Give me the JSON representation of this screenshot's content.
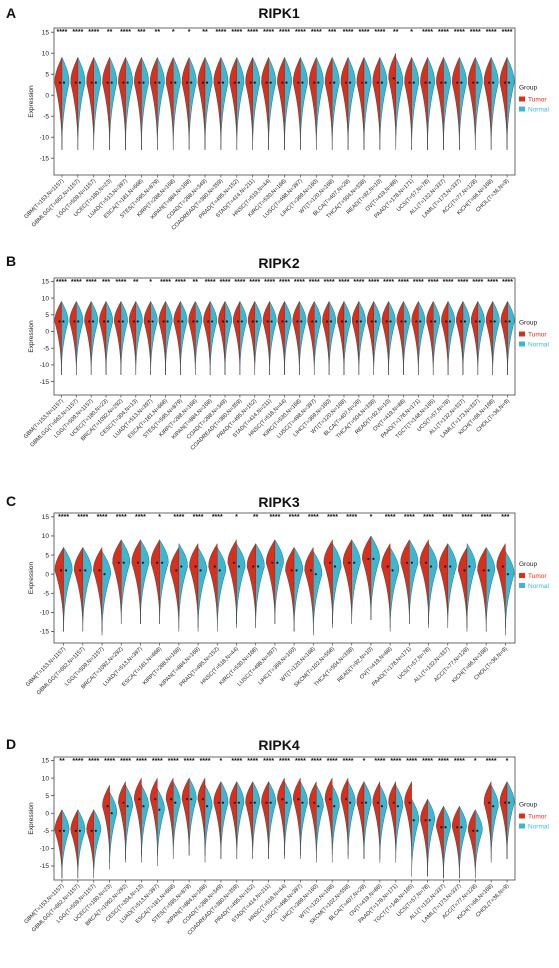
{
  "colors": {
    "tumor": "#d8301c",
    "normal": "#3fb6cf",
    "axis": "#333333"
  },
  "legend": {
    "title": "Group",
    "tumor": "Tumor",
    "normal": "Normal"
  },
  "chart_data": [
    {
      "type": "split-violin",
      "letter": "A",
      "title": "RIPK1",
      "ylabel": "Expression",
      "ylim": [
        -19,
        16
      ],
      "yticks": [
        15,
        10,
        5,
        0,
        -5,
        -10,
        -15
      ],
      "categories": [
        "GBM(T=153,N=1157)",
        "GBMLGG(T=662,N=1157)",
        "LGG(T=509,N=1157)",
        "UCEC(T=180,N=23)",
        "LUAD(T=513,N=397)",
        "ESCA(T=181,N=668)",
        "STES(T=595,N=879)",
        "KIRP(T=288,N=168)",
        "KIPAN(T=884,N=168)",
        "COAD(T=288,N=349)",
        "COADREAD(T=380,N=359)",
        "PRAD(T=495,N=152)",
        "STAD(T=414,N=211)",
        "HNSC(T=519,N=44)",
        "KIRC(T=530,N=168)",
        "LUSC(T=498,N=397)",
        "LIHC(T=369,N=160)",
        "WT(T=120,N=168)",
        "BLCA(T=407,N=28)",
        "THCA(T=504,N=338)",
        "READ(T=92,N=10)",
        "OV(T=419,N=88)",
        "PAAD(T=178,N=171)",
        "UCS(T=57,N=78)",
        "ALL(T=132,N=337)",
        "LAML(T=173,N=337)",
        "ACC(T=77,N=128)",
        "KICH(T=66,N=168)",
        "CHOL(T=36,N=9)"
      ],
      "significance": [
        "****",
        "****",
        "****",
        "**",
        "****",
        "***",
        "**",
        "*",
        "*",
        "**",
        "****",
        "****",
        "****",
        "****",
        "****",
        "****",
        "****",
        "***",
        "****",
        "****",
        "****",
        "**",
        "*",
        "****",
        "****",
        "****",
        "****",
        "****",
        "****"
      ],
      "tumor_median": [
        3,
        3,
        3,
        3,
        3,
        3,
        3,
        3,
        3,
        3,
        3,
        3,
        3,
        3,
        3,
        3,
        3,
        3,
        3,
        3,
        3,
        4,
        3,
        3,
        3,
        3,
        3,
        3,
        3
      ],
      "normal_median": [
        3,
        3,
        3,
        3,
        3,
        3,
        3,
        3,
        3,
        3,
        3,
        3,
        3,
        3,
        3,
        3,
        3,
        3,
        3,
        3,
        3,
        3,
        3,
        3,
        3,
        3,
        3,
        3,
        3
      ]
    },
    {
      "type": "split-violin",
      "letter": "B",
      "title": "RIPK2",
      "ylabel": "Expression",
      "ylim": [
        -19,
        16
      ],
      "yticks": [
        15,
        10,
        5,
        0,
        -5,
        -10,
        -15
      ],
      "categories": [
        "GBM(T=153,N=1157)",
        "GBMLGG(T=662,N=1157)",
        "LGG(T=509,N=1157)",
        "UCEC(T=180,N=23)",
        "BRCA(T=1092,N=292)",
        "CESC(T=304,N=13)",
        "LUAD(T=513,N=397)",
        "ESCA(T=181,N=668)",
        "STES(T=595,N=879)",
        "KIRP(T=288,N=168)",
        "KIPAN(T=884,N=168)",
        "COAD(T=288,N=349)",
        "COADREAD(T=380,N=359)",
        "PRAD(T=495,N=152)",
        "STAD(T=414,N=211)",
        "HNSC(T=518,N=44)",
        "KIRC(T=530,N=168)",
        "LUSC(T=498,N=397)",
        "LIHC(T=369,N=160)",
        "WT(T=120,N=168)",
        "BLCA(T=407,N=28)",
        "THCA(T=504,N=338)",
        "READ(T=92,N=10)",
        "OV(T=419,N=88)",
        "PAAD(T=178,N=171)",
        "TGCT(T=148,N=165)",
        "UCS(T=57,N=78)",
        "ALL(T=132,N=337)",
        "LAML(T=173,N=337)",
        "KICH(T=66,N=168)",
        "CHOL(T=36,N=9)"
      ],
      "significance": [
        "****",
        "****",
        "****",
        "***",
        "****",
        "**",
        "*",
        "****",
        "****",
        "**",
        "****",
        "****",
        "****",
        "****",
        "****",
        "****",
        "****",
        "****",
        "****",
        "****",
        "****",
        "****",
        "****",
        "****",
        "****",
        "****",
        "****",
        "****",
        "****",
        "****",
        "****"
      ],
      "tumor_median": [
        3,
        3,
        3,
        3,
        3,
        3,
        3,
        3,
        3,
        3,
        3,
        3,
        3,
        3,
        3,
        3,
        3,
        3,
        3,
        3,
        3,
        3,
        3,
        3,
        3,
        3,
        3,
        3,
        3,
        3,
        3
      ],
      "normal_median": [
        3,
        3,
        3,
        3,
        3,
        3,
        3,
        3,
        3,
        3,
        3,
        3,
        3,
        3,
        3,
        3,
        3,
        3,
        3,
        3,
        3,
        3,
        3,
        3,
        3,
        3,
        3,
        3,
        3,
        3,
        3
      ]
    },
    {
      "type": "split-violin",
      "letter": "C",
      "title": "RIPK3",
      "ylabel": "Expression",
      "ylim": [
        -18,
        16
      ],
      "yticks": [
        15,
        10,
        5,
        0,
        -5,
        -10,
        -15
      ],
      "categories": [
        "GBM(T=153,N=1157)",
        "GBMLGG(T=662,N=1157)",
        "LGG(T=509,N=1157)",
        "BRCA(T=1092,N=292)",
        "LUAD(T=513,N=397)",
        "ESCA(T=181,N=668)",
        "KIRP(T=288,N=168)",
        "KIPAN(T=884,N=168)",
        "PRAD(T=495,N=152)",
        "HNSC(T=518,N=44)",
        "KIRC(T=530,N=168)",
        "LUSC(T=498,N=397)",
        "LIHC(T=369,N=160)",
        "WT(T=120,N=168)",
        "SKCM(T=102,N=558)",
        "THCA(T=504,N=338)",
        "READ(T=92,N=10)",
        "OV(T=419,N=88)",
        "PAAD(T=178,N=171)",
        "UCS(T=57,N=78)",
        "ALL(T=132,N=337)",
        "ACC(T=77,N=128)",
        "KICH(T=66,N=168)",
        "CHOL(T=36,N=9)"
      ],
      "significance": [
        "****",
        "****",
        "****",
        "****",
        "****",
        "*",
        "****",
        "****",
        "****",
        "*",
        "**",
        "****",
        "****",
        "****",
        "****",
        "****",
        "*",
        "****",
        "****",
        "****",
        "****",
        "****",
        "****",
        "***"
      ],
      "tumor_median": [
        1,
        1,
        1,
        3,
        3,
        3,
        1,
        2,
        2,
        3,
        2,
        3,
        1,
        1,
        3,
        3,
        4,
        2,
        3,
        3,
        2,
        1,
        1,
        2
      ],
      "normal_median": [
        1,
        1,
        0,
        3,
        3,
        3,
        2,
        1,
        1,
        2,
        2,
        3,
        1,
        0,
        2,
        3,
        4,
        1,
        3,
        2,
        2,
        2,
        1,
        0
      ]
    },
    {
      "type": "split-violin",
      "letter": "D",
      "title": "RIPK4",
      "ylabel": "Expression",
      "ylim": [
        -19,
        16
      ],
      "yticks": [
        15,
        10,
        5,
        0,
        -5,
        -10,
        -15
      ],
      "categories": [
        "GBM(T=153,N=1157)",
        "GBMLGG(T=662,N=1157)",
        "LGG(T=509,N=1157)",
        "UCEC(T=180,N=23)",
        "BRCA(T=1092,N=292)",
        "CESC(T=304,N=13)",
        "LUAD(T=513,N=397)",
        "ESCA(T=181,N=668)",
        "STES(T=595,N=879)",
        "KIPAN(T=884,N=168)",
        "COAD(T=288,N=349)",
        "COADREAD(T=380,N=359)",
        "PRAD(T=495,N=152)",
        "STAD(T=414,N=211)",
        "HNSC(T=518,N=44)",
        "LUSC(T=498,N=397)",
        "LIHC(T=369,N=160)",
        "WT(T=120,N=168)",
        "SKCM(T=102,N=558)",
        "BLCA(T=407,N=28)",
        "OV(T=419,N=88)",
        "PAAD(T=178,N=171)",
        "TGCT(T=148,N=165)",
        "UCS(T=57,N=78)",
        "ALL(T=132,N=337)",
        "LAML(T=173,N=337)",
        "ACC(T=77,N=128)",
        "KICH(T=66,N=168)",
        "CHOL(T=36,N=9)"
      ],
      "significance": [
        "**",
        "****",
        "****",
        "****",
        "****",
        "****",
        "****",
        "****",
        "****",
        "****",
        "*",
        "****",
        "****",
        "****",
        "****",
        "****",
        "****",
        "****",
        "****",
        "*",
        "****",
        "****",
        "****",
        "****",
        "****",
        "****",
        "*",
        "****",
        "*"
      ],
      "tumor_median": [
        -5,
        -5,
        -5,
        2,
        3,
        4,
        4,
        4,
        4,
        4,
        3,
        3,
        3,
        3,
        4,
        4,
        3,
        4,
        4,
        3,
        3,
        3,
        3,
        -2,
        -4,
        -4,
        -5,
        3,
        3
      ],
      "normal_median": [
        -5,
        -5,
        -5,
        0,
        2,
        2,
        1,
        3,
        4,
        2,
        3,
        3,
        3,
        3,
        3,
        3,
        2,
        2,
        3,
        3,
        2,
        2,
        -2,
        -2,
        -4,
        -4,
        -5,
        2,
        3
      ]
    }
  ]
}
